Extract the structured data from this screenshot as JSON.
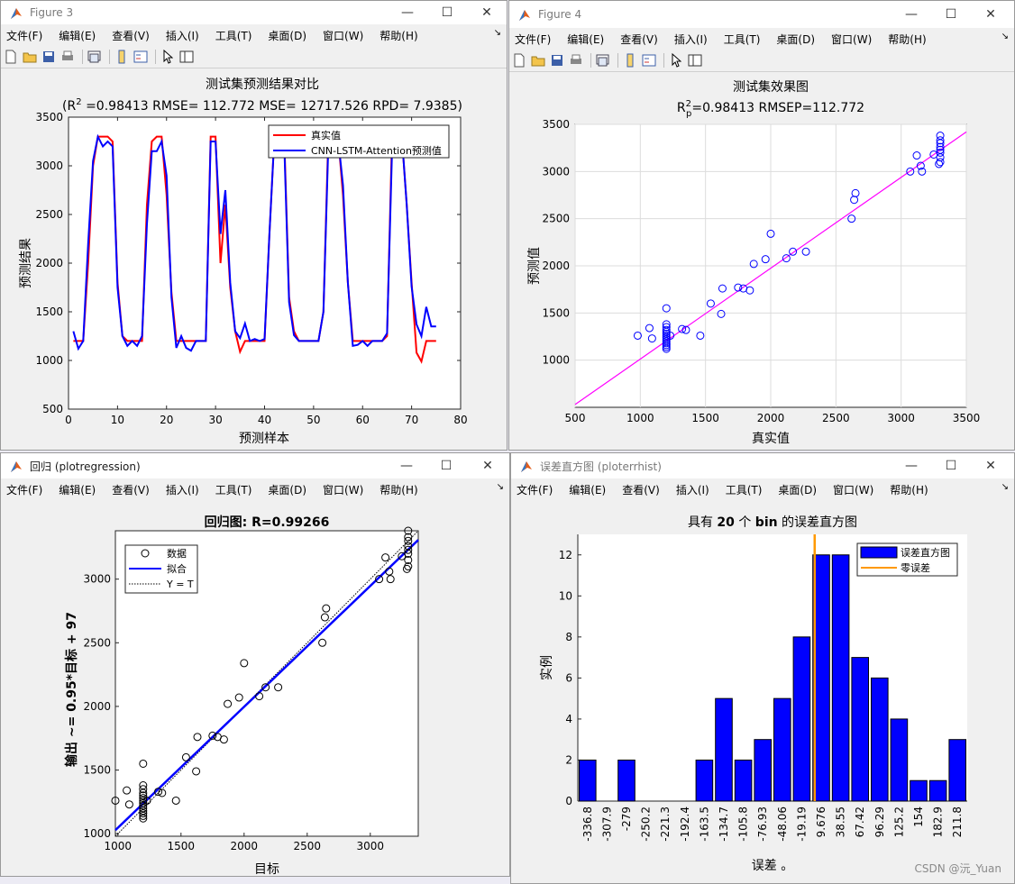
{
  "menu": [
    "文件(F)",
    "编辑(E)",
    "查看(V)",
    "插入(I)",
    "工具(T)",
    "桌面(D)",
    "窗口(W)",
    "帮助(H)"
  ],
  "window_controls": {
    "minimize": "—",
    "maximize": "☐",
    "close": "✕"
  },
  "watermark": "CSDN @沅_Yuan",
  "colors": {
    "red": "#ff0000",
    "blue": "#0000ff",
    "magenta": "#ff00ff",
    "orange": "#ff9900",
    "black": "#000000"
  },
  "fig3": {
    "window_title": "Figure 3",
    "title": "测试集预测结果对比",
    "subtitle_pre": "(R",
    "subtitle_sup": "2",
    "subtitle_post": " =0.98413 RMSE= 112.772 MSE= 12717.526 RPD= 7.9385)",
    "xlabel": "预测样本",
    "ylabel": "预测结果",
    "legend": [
      "真实值",
      "CNN-LSTM-Attention预测值"
    ],
    "chart_data": {
      "type": "line",
      "xlim": [
        0,
        80
      ],
      "ylim": [
        500,
        3500
      ],
      "xticks": [
        0,
        10,
        20,
        30,
        40,
        50,
        60,
        70,
        80
      ],
      "yticks": [
        500,
        1000,
        1500,
        2000,
        2500,
        3000,
        3500
      ],
      "series": [
        {
          "name": "真实值",
          "color": "#ff0000",
          "x": [
            1,
            2,
            3,
            4,
            5,
            6,
            7,
            8,
            9,
            10,
            11,
            12,
            13,
            14,
            15,
            16,
            17,
            18,
            19,
            20,
            21,
            22,
            23,
            24,
            25,
            26,
            27,
            28,
            29,
            30,
            31,
            32,
            33,
            34,
            35,
            36,
            37,
            38,
            39,
            40,
            41,
            42,
            43,
            44,
            45,
            46,
            47,
            48,
            49,
            50,
            51,
            52,
            53,
            54,
            55,
            56,
            57,
            58,
            59,
            60,
            61,
            62,
            63,
            64,
            65,
            66,
            67,
            68,
            69,
            70,
            71,
            72,
            73,
            74,
            75
          ],
          "y": [
            1200,
            1200,
            1200,
            2000,
            3000,
            3300,
            3300,
            3300,
            3250,
            1800,
            1250,
            1200,
            1200,
            1200,
            1200,
            2600,
            3250,
            3300,
            3300,
            2700,
            1700,
            1200,
            1200,
            1200,
            1200,
            1200,
            1200,
            1200,
            3300,
            3300,
            2000,
            2600,
            1750,
            1300,
            1090,
            1200,
            1200,
            1200,
            1200,
            1200,
            2300,
            3300,
            3300,
            3300,
            1650,
            1300,
            1200,
            1200,
            1200,
            1200,
            1200,
            1500,
            3300,
            3300,
            3300,
            2700,
            1800,
            1200,
            1200,
            1200,
            1200,
            1200,
            1200,
            1200,
            1250,
            3300,
            3300,
            3300,
            2600,
            1800,
            1080,
            990,
            1200,
            1200,
            1200
          ]
        },
        {
          "name": "CNN-LSTM-Attention预测值",
          "color": "#0000ff",
          "x": [
            1,
            2,
            3,
            4,
            5,
            6,
            7,
            8,
            9,
            10,
            11,
            12,
            13,
            14,
            15,
            16,
            17,
            18,
            19,
            20,
            21,
            22,
            23,
            24,
            25,
            26,
            27,
            28,
            29,
            30,
            31,
            32,
            33,
            34,
            35,
            36,
            37,
            38,
            39,
            40,
            41,
            42,
            43,
            44,
            45,
            46,
            47,
            48,
            49,
            50,
            51,
            52,
            53,
            54,
            55,
            56,
            57,
            58,
            59,
            60,
            61,
            62,
            63,
            64,
            65,
            66,
            67,
            68,
            69,
            70,
            71,
            72,
            73,
            74,
            75
          ],
          "y": [
            1300,
            1120,
            1200,
            2200,
            3050,
            3300,
            3200,
            3250,
            3200,
            1750,
            1250,
            1150,
            1200,
            1150,
            1250,
            2400,
            3150,
            3150,
            3250,
            2900,
            1650,
            1130,
            1250,
            1130,
            1100,
            1200,
            1200,
            1200,
            3250,
            3250,
            2300,
            2750,
            1800,
            1300,
            1230,
            1380,
            1200,
            1220,
            1200,
            1220,
            2300,
            3300,
            3200,
            3230,
            1600,
            1260,
            1200,
            1200,
            1200,
            1200,
            1200,
            1500,
            3200,
            3300,
            3280,
            2800,
            1800,
            1150,
            1160,
            1200,
            1150,
            1200,
            1200,
            1200,
            1280,
            3150,
            3250,
            3300,
            2600,
            1760,
            1370,
            1250,
            1550,
            1350,
            1350
          ]
        }
      ]
    }
  },
  "fig4": {
    "window_title": "Figure 4",
    "title": "测试集效果图",
    "subtitle_pre": "R",
    "subtitle_sup": "2",
    "subtitle_sub": "p",
    "subtitle_post": "=0.98413  RMSEP=112.772",
    "xlabel": "真实值",
    "ylabel": "预测值",
    "chart_data": {
      "type": "scatter",
      "xlim": [
        500,
        3500
      ],
      "ylim": [
        500,
        3500
      ],
      "xticks": [
        500,
        1000,
        1500,
        2000,
        2500,
        3000,
        3500
      ],
      "yticks": [
        1000,
        1500,
        2000,
        2500,
        3000,
        3500
      ],
      "grid": true,
      "fit_line": {
        "color": "#ff00ff",
        "x": [
          500,
          3500
        ],
        "y": [
          530,
          3420
        ]
      },
      "points": [
        [
          980,
          1260
        ],
        [
          1070,
          1340
        ],
        [
          1090,
          1230
        ],
        [
          1200,
          1550
        ],
        [
          1200,
          1380
        ],
        [
          1200,
          1350
        ],
        [
          1200,
          1320
        ],
        [
          1200,
          1300
        ],
        [
          1200,
          1280
        ],
        [
          1200,
          1260
        ],
        [
          1200,
          1240
        ],
        [
          1200,
          1220
        ],
        [
          1200,
          1200
        ],
        [
          1200,
          1180
        ],
        [
          1200,
          1160
        ],
        [
          1200,
          1140
        ],
        [
          1200,
          1120
        ],
        [
          1230,
          1260
        ],
        [
          1320,
          1330
        ],
        [
          1350,
          1320
        ],
        [
          1460,
          1260
        ],
        [
          1540,
          1600
        ],
        [
          1620,
          1490
        ],
        [
          1630,
          1760
        ],
        [
          1750,
          1770
        ],
        [
          1790,
          1760
        ],
        [
          1840,
          1740
        ],
        [
          1870,
          2020
        ],
        [
          1960,
          2070
        ],
        [
          2000,
          2340
        ],
        [
          2120,
          2080
        ],
        [
          2170,
          2150
        ],
        [
          2270,
          2150
        ],
        [
          2620,
          2500
        ],
        [
          2640,
          2700
        ],
        [
          2650,
          2770
        ],
        [
          3070,
          3000
        ],
        [
          3120,
          3170
        ],
        [
          3150,
          3060
        ],
        [
          3160,
          3000
        ],
        [
          3250,
          3180
        ],
        [
          3290,
          3080
        ],
        [
          3300,
          3100
        ],
        [
          3300,
          3150
        ],
        [
          3300,
          3200
        ],
        [
          3300,
          3230
        ],
        [
          3300,
          3260
        ],
        [
          3300,
          3300
        ],
        [
          3300,
          3330
        ],
        [
          3300,
          3380
        ]
      ]
    }
  },
  "reg": {
    "window_title": "回归 (plotregression)",
    "title": "回归图: R=0.99266",
    "xlabel": "目标",
    "ylabel": "输出 ~= 0.95*目标 + 97",
    "legend": [
      "数据",
      "拟合",
      "Y = T"
    ],
    "chart_data": {
      "type": "scatter",
      "xlim": [
        980,
        3380
      ],
      "ylim": [
        980,
        3380
      ],
      "xticks": [
        1000,
        1500,
        2000,
        2500,
        3000
      ],
      "yticks": [
        1000,
        1500,
        2000,
        2500,
        3000
      ],
      "fit_line": {
        "x": [
          980,
          3380
        ],
        "y": [
          1028,
          3308
        ]
      },
      "identity_line": {
        "x": [
          980,
          3380
        ],
        "y": [
          980,
          3380
        ]
      },
      "points": [
        [
          980,
          1260
        ],
        [
          1070,
          1340
        ],
        [
          1090,
          1230
        ],
        [
          1200,
          1550
        ],
        [
          1200,
          1380
        ],
        [
          1200,
          1350
        ],
        [
          1200,
          1320
        ],
        [
          1200,
          1300
        ],
        [
          1200,
          1280
        ],
        [
          1200,
          1260
        ],
        [
          1200,
          1240
        ],
        [
          1200,
          1220
        ],
        [
          1200,
          1200
        ],
        [
          1200,
          1180
        ],
        [
          1200,
          1160
        ],
        [
          1200,
          1140
        ],
        [
          1200,
          1120
        ],
        [
          1230,
          1260
        ],
        [
          1320,
          1330
        ],
        [
          1350,
          1320
        ],
        [
          1460,
          1260
        ],
        [
          1540,
          1600
        ],
        [
          1620,
          1490
        ],
        [
          1630,
          1760
        ],
        [
          1750,
          1770
        ],
        [
          1790,
          1760
        ],
        [
          1840,
          1740
        ],
        [
          1870,
          2020
        ],
        [
          1960,
          2070
        ],
        [
          2000,
          2340
        ],
        [
          2120,
          2080
        ],
        [
          2170,
          2150
        ],
        [
          2270,
          2150
        ],
        [
          2620,
          2500
        ],
        [
          2640,
          2700
        ],
        [
          2650,
          2770
        ],
        [
          3070,
          3000
        ],
        [
          3120,
          3170
        ],
        [
          3150,
          3060
        ],
        [
          3160,
          3000
        ],
        [
          3250,
          3180
        ],
        [
          3290,
          3080
        ],
        [
          3300,
          3100
        ],
        [
          3300,
          3150
        ],
        [
          3300,
          3200
        ],
        [
          3300,
          3230
        ],
        [
          3300,
          3260
        ],
        [
          3300,
          3300
        ],
        [
          3300,
          3330
        ],
        [
          3300,
          3380
        ]
      ]
    }
  },
  "hist": {
    "window_title": "误差直方图 (ploterrhist)",
    "title_pre": "具有 ",
    "title_bold1": "20",
    "title_mid": " 个 ",
    "title_bold2": "bin",
    "title_post": " 的误差直方图",
    "xlabel": "误差 。",
    "ylabel": "实例",
    "legend": [
      "误差直方图",
      "零误差"
    ],
    "chart_data": {
      "type": "bar",
      "categories": [
        "-336.8",
        "-307.9",
        "-279",
        "-250.2",
        "-221.3",
        "-192.4",
        "-163.5",
        "-134.7",
        "-105.8",
        "-76.93",
        "-48.06",
        "-19.19",
        "9.676",
        "38.55",
        "67.42",
        "96.29",
        "125.2",
        "154",
        "182.9",
        "211.8"
      ],
      "values": [
        2,
        0,
        2,
        0,
        0,
        0,
        2,
        5,
        2,
        3,
        5,
        8,
        12,
        12,
        7,
        6,
        4,
        1,
        1,
        3
      ],
      "ylim": [
        0,
        13
      ],
      "yticks": [
        0,
        2,
        4,
        6,
        8,
        10,
        12
      ],
      "zero_error_at": 0
    }
  }
}
